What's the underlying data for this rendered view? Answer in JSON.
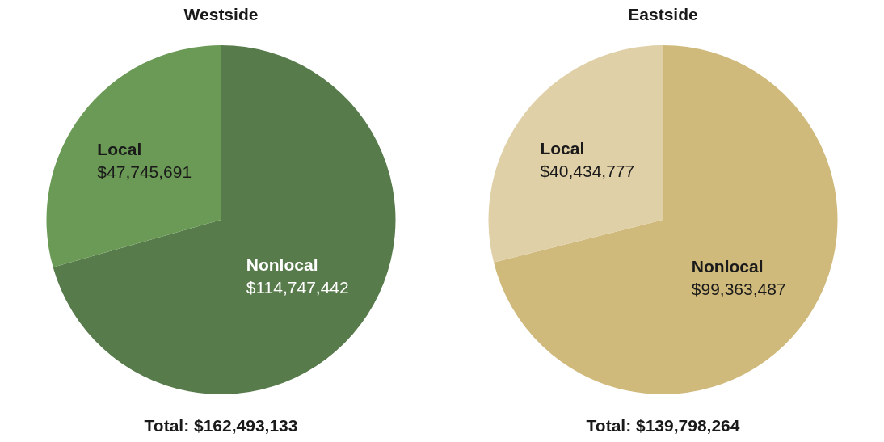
{
  "chart_data": [
    {
      "type": "pie",
      "title": "Westside",
      "categories": [
        "Nonlocal",
        "Local"
      ],
      "values": [
        114747442,
        47745691
      ],
      "colors": [
        "#587b4c",
        "#6a9a55"
      ],
      "value_labels": [
        "$114,747,442",
        "$47,745,691"
      ],
      "annotations": [
        "Total: $162,493,133"
      ]
    },
    {
      "type": "pie",
      "title": "Eastside",
      "categories": [
        "Nonlocal",
        "Local"
      ],
      "values": [
        99363487,
        40434777
      ],
      "colors": [
        "#cfb97b",
        "#e0d0a8"
      ],
      "value_labels": [
        "$99,363,487",
        "$40,434,777"
      ],
      "annotations": [
        "Total: $139,798,264"
      ]
    }
  ]
}
